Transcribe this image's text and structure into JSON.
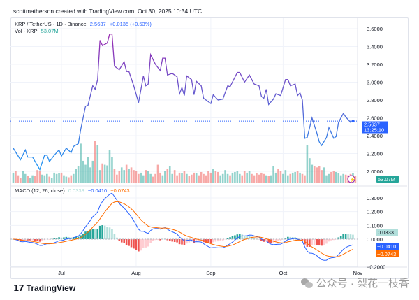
{
  "credit": "scottmatherson created with TradingView.com, Oct 30, 2025 10:34 UTC",
  "legend": {
    "symbol": "XRP / TetherUS · 1D · Binance",
    "price": "2.5637",
    "change": "+0.0135 (+0.53%)",
    "vol_label": "Vol · XRP",
    "vol_value": "53.07M",
    "macd_label": "MACD (12, 26, close)",
    "macd_hist": "0.0333",
    "macd_line": "−0.0410",
    "macd_signal": "−0.0743"
  },
  "tags": {
    "price": "2.5637",
    "countdown": "13:25:10",
    "volume": "53.07M",
    "hist": "0.0333",
    "macd": "−0.0410",
    "signal": "−0.0743"
  },
  "colors": {
    "line_low": "#2196f3",
    "line_high": "#9c27b0",
    "up": "#26a69a",
    "down": "#ef5350",
    "macd": "#2962ff",
    "signal": "#ff6d00",
    "price_tag": "#2962ff",
    "vol_tag": "#26a69a"
  },
  "footer": {
    "brand": "TradingView",
    "watermark": "公众号 · 梨花一枝香"
  },
  "chart_data": {
    "type": "line",
    "x_ticks": [
      "Jul",
      "Aug",
      "Sep",
      "Oct",
      "Nov"
    ],
    "price_ticks": [
      "3.6000",
      "3.4000",
      "3.2000",
      "3.0000",
      "2.8000",
      "2.6000",
      "2.4000",
      "2.2000",
      "2.0000"
    ],
    "macd_ticks": [
      "0.3000",
      "0.2000",
      "0.1000",
      "0.0000",
      "−0.2000"
    ],
    "grid": true,
    "price": [
      [
        "2025-06-11",
        2.26
      ],
      [
        "2025-06-14",
        2.13
      ],
      [
        "2025-06-16",
        2.24
      ],
      [
        "2025-06-17",
        2.16
      ],
      [
        "2025-06-19",
        2.16
      ],
      [
        "2025-06-22",
        2.02
      ],
      [
        "2025-06-24",
        2.18
      ],
      [
        "2025-06-25",
        2.18
      ],
      [
        "2025-06-26",
        2.11
      ],
      [
        "2025-06-28",
        2.18
      ],
      [
        "2025-06-30",
        2.24
      ],
      [
        "2025-07-01",
        2.17
      ],
      [
        "2025-07-03",
        2.26
      ],
      [
        "2025-07-05",
        2.21
      ],
      [
        "2025-07-06",
        2.28
      ],
      [
        "2025-07-08",
        2.31
      ],
      [
        "2025-07-09",
        2.47
      ],
      [
        "2025-07-11",
        2.73
      ],
      [
        "2025-07-12",
        2.74
      ],
      [
        "2025-07-14",
        2.96
      ],
      [
        "2025-07-15",
        2.92
      ],
      [
        "2025-07-16",
        3.03
      ],
      [
        "2025-07-17",
        3.47
      ],
      [
        "2025-07-18",
        3.41
      ],
      [
        "2025-07-20",
        3.44
      ],
      [
        "2025-07-21",
        3.54
      ],
      [
        "2025-07-22",
        3.54
      ],
      [
        "2025-07-23",
        3.18
      ],
      [
        "2025-07-25",
        3.14
      ],
      [
        "2025-07-27",
        3.23
      ],
      [
        "2025-07-28",
        3.12
      ],
      [
        "2025-07-29",
        3.12
      ],
      [
        "2025-07-31",
        2.96
      ],
      [
        "2025-08-02",
        2.77
      ],
      [
        "2025-08-04",
        3.07
      ],
      [
        "2025-08-05",
        2.96
      ],
      [
        "2025-08-06",
        2.98
      ],
      [
        "2025-08-07",
        3.31
      ],
      [
        "2025-08-09",
        3.2
      ],
      [
        "2025-08-11",
        3.13
      ],
      [
        "2025-08-12",
        3.27
      ],
      [
        "2025-08-13",
        3.27
      ],
      [
        "2025-08-14",
        3.08
      ],
      [
        "2025-08-16",
        3.1
      ],
      [
        "2025-08-18",
        3.06
      ],
      [
        "2025-08-19",
        2.87
      ],
      [
        "2025-08-20",
        2.94
      ],
      [
        "2025-08-21",
        2.85
      ],
      [
        "2025-08-22",
        3.07
      ],
      [
        "2025-08-24",
        3.03
      ],
      [
        "2025-08-25",
        2.86
      ],
      [
        "2025-08-26",
        3.01
      ],
      [
        "2025-08-28",
        2.96
      ],
      [
        "2025-08-29",
        2.82
      ],
      [
        "2025-09-01",
        2.76
      ],
      [
        "2025-09-02",
        2.86
      ],
      [
        "2025-09-04",
        2.8
      ],
      [
        "2025-09-06",
        2.81
      ],
      [
        "2025-09-08",
        2.96
      ],
      [
        "2025-09-09",
        2.95
      ],
      [
        "2025-09-12",
        3.11
      ],
      [
        "2025-09-13",
        3.11
      ],
      [
        "2025-09-15",
        3.0
      ],
      [
        "2025-09-17",
        3.08
      ],
      [
        "2025-09-19",
        2.98
      ],
      [
        "2025-09-21",
        2.96
      ],
      [
        "2025-09-22",
        2.84
      ],
      [
        "2025-09-23",
        2.82
      ],
      [
        "2025-09-24",
        2.92
      ],
      [
        "2025-09-25",
        2.75
      ],
      [
        "2025-09-27",
        2.81
      ],
      [
        "2025-09-28",
        2.87
      ],
      [
        "2025-09-30",
        2.85
      ],
      [
        "2025-10-02",
        3.03
      ],
      [
        "2025-10-03",
        3.03
      ],
      [
        "2025-10-04",
        2.96
      ],
      [
        "2025-10-06",
        2.98
      ],
      [
        "2025-10-07",
        2.85
      ],
      [
        "2025-10-08",
        2.88
      ],
      [
        "2025-10-09",
        2.8
      ],
      [
        "2025-10-10",
        2.37
      ],
      [
        "2025-10-11",
        2.38
      ],
      [
        "2025-10-13",
        2.6
      ],
      [
        "2025-10-15",
        2.43
      ],
      [
        "2025-10-16",
        2.33
      ],
      [
        "2025-10-17",
        2.29
      ],
      [
        "2025-10-19",
        2.38
      ],
      [
        "2025-10-20",
        2.49
      ],
      [
        "2025-10-22",
        2.37
      ],
      [
        "2025-10-23",
        2.39
      ],
      [
        "2025-10-24",
        2.55
      ],
      [
        "2025-10-26",
        2.65
      ],
      [
        "2025-10-27",
        2.61
      ],
      [
        "2025-10-29",
        2.55
      ],
      [
        "2025-10-30",
        2.5637
      ]
    ],
    "volume_start": "2025-06-11",
    "volume_millions": [
      80,
      90,
      60,
      40,
      95,
      70,
      55,
      40,
      60,
      55,
      100,
      90,
      65,
      60,
      70,
      50,
      40,
      80,
      70,
      75,
      80,
      60,
      50,
      45,
      60,
      70,
      110,
      130,
      300,
      170,
      140,
      200,
      120,
      170,
      320,
      290,
      100,
      150,
      140,
      135,
      250,
      200,
      110,
      65,
      90,
      120,
      100,
      140,
      110,
      120,
      100,
      90,
      70,
      80,
      60,
      100,
      90,
      70,
      50,
      70,
      140,
      80,
      60,
      90,
      110,
      130,
      70,
      100,
      60,
      80,
      75,
      90,
      70,
      55,
      65,
      80,
      75,
      60,
      85,
      70,
      60,
      90,
      80,
      110,
      90,
      85,
      60,
      70,
      100,
      70,
      60,
      80,
      85,
      90,
      70,
      60,
      90,
      80,
      95,
      70,
      60,
      75,
      65,
      80,
      70,
      60,
      55,
      60,
      130,
      80,
      110,
      90,
      70,
      100,
      60,
      70,
      80,
      85,
      90,
      80,
      70,
      60,
      290,
      190,
      140,
      130,
      120,
      130,
      100,
      120,
      60,
      70,
      85,
      90,
      85,
      75,
      60,
      70,
      65,
      60,
      70,
      75,
      53.07
    ]
  }
}
